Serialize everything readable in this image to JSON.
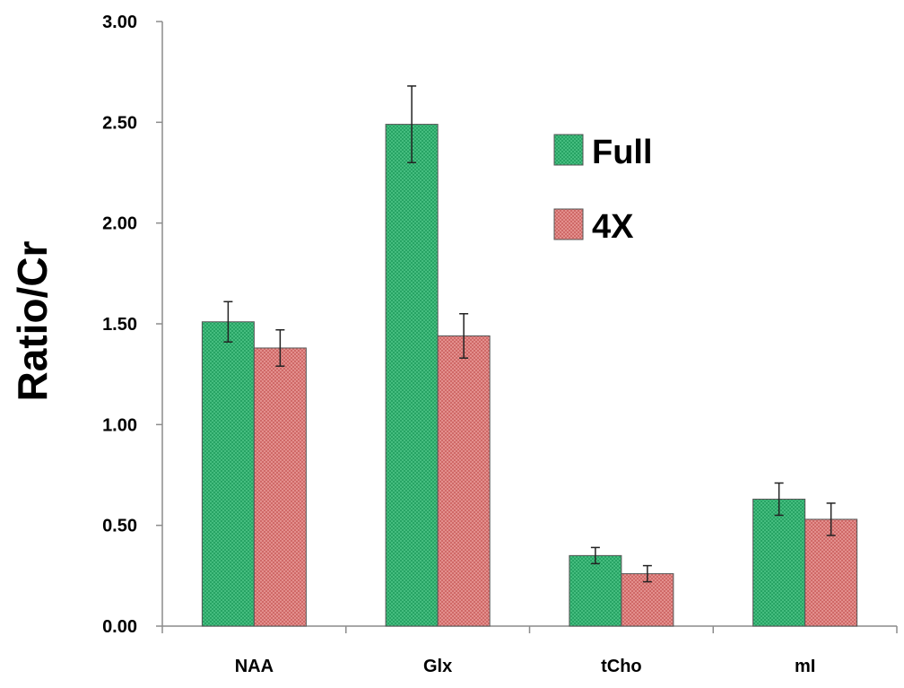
{
  "chart_data": {
    "type": "bar",
    "title": "",
    "xlabel": "",
    "ylabel": "Ratio/Cr",
    "ylim": [
      0,
      3
    ],
    "y_ticks": [
      "0.00",
      "0.50",
      "1.00",
      "1.50",
      "2.00",
      "2.50",
      "3.00"
    ],
    "categories": [
      "NAA",
      "Glx",
      "tCho",
      "mI"
    ],
    "series": [
      {
        "name": "Full",
        "values": [
          1.51,
          2.49,
          0.35,
          0.63
        ],
        "errors": [
          0.1,
          0.19,
          0.04,
          0.08
        ],
        "color": "#27a364"
      },
      {
        "name": "4X",
        "values": [
          1.38,
          1.44,
          0.26,
          0.53
        ],
        "errors": [
          0.09,
          0.11,
          0.04,
          0.08
        ],
        "color": "#cf6967"
      }
    ],
    "grid": false,
    "legend_position": "top-right",
    "error_bars": true
  }
}
